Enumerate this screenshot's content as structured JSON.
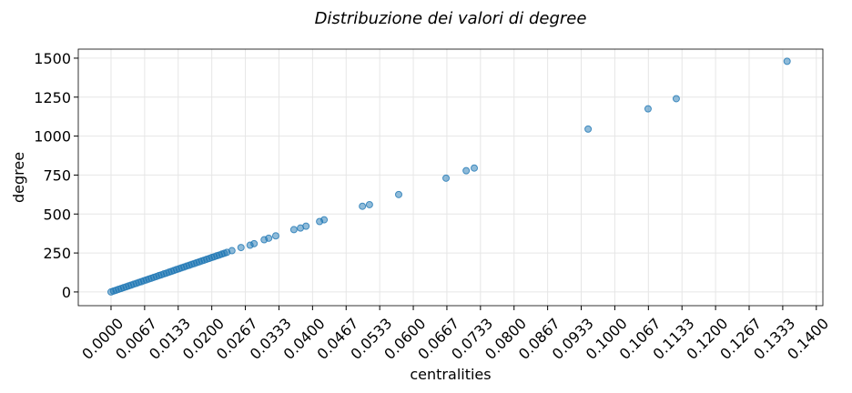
{
  "chart_data": {
    "type": "scatter",
    "title": "Distribuzione dei valori di degree",
    "x_label": "centralities",
    "y_label": "degree",
    "series": [
      {
        "color": "#1f77b4",
        "x": [
          0.0,
          0.0005,
          0.001,
          0.0015,
          0.002,
          0.0025,
          0.003,
          0.0035,
          0.004,
          0.0045,
          0.005,
          0.0055,
          0.006,
          0.0065,
          0.007,
          0.0075,
          0.008,
          0.0085,
          0.009,
          0.0095,
          0.01,
          0.0105,
          0.011,
          0.0115,
          0.012,
          0.0125,
          0.013,
          0.0135,
          0.014,
          0.0145,
          0.015,
          0.0155,
          0.016,
          0.0165,
          0.017,
          0.0175,
          0.018,
          0.0185,
          0.019,
          0.0195,
          0.02,
          0.0205,
          0.021,
          0.0215,
          0.022,
          0.0225,
          0.023,
          0.024,
          0.0258,
          0.0276,
          0.0284,
          0.0304,
          0.0313,
          0.0327,
          0.0363,
          0.0376,
          0.0387,
          0.0414,
          0.0423,
          0.0499,
          0.0513,
          0.0571,
          0.0665,
          0.0705,
          0.0721,
          0.0947,
          0.1066,
          0.1122,
          0.1342
        ],
        "values": [
          0,
          6,
          11,
          17,
          22,
          28,
          33,
          39,
          44,
          50,
          55,
          61,
          66,
          72,
          77,
          83,
          88,
          94,
          99,
          105,
          110,
          116,
          121,
          127,
          132,
          138,
          144,
          149,
          155,
          160,
          166,
          171,
          177,
          182,
          188,
          193,
          199,
          204,
          210,
          215,
          221,
          226,
          232,
          237,
          243,
          248,
          254,
          265,
          285,
          300,
          310,
          335,
          345,
          360,
          400,
          410,
          422,
          452,
          463,
          550,
          560,
          625,
          730,
          778,
          795,
          1045,
          1175,
          1240,
          1480
        ]
      }
    ],
    "xlim": [
      -0.0065,
      0.1413
    ],
    "ylim": [
      -88,
      1558
    ],
    "xticks": [
      {
        "value": 0,
        "label": "0.0000"
      },
      {
        "value": 0.006667,
        "label": "0.0067"
      },
      {
        "value": 0.013333,
        "label": "0.0133"
      },
      {
        "value": 0.02,
        "label": "0.0200"
      },
      {
        "value": 0.026667,
        "label": "0.0267"
      },
      {
        "value": 0.033333,
        "label": "0.0333"
      },
      {
        "value": 0.04,
        "label": "0.0400"
      },
      {
        "value": 0.046667,
        "label": "0.0467"
      },
      {
        "value": 0.053333,
        "label": "0.0533"
      },
      {
        "value": 0.06,
        "label": "0.0600"
      },
      {
        "value": 0.066667,
        "label": "0.0667"
      },
      {
        "value": 0.073333,
        "label": "0.0733"
      },
      {
        "value": 0.08,
        "label": "0.0800"
      },
      {
        "value": 0.086667,
        "label": "0.0867"
      },
      {
        "value": 0.093333,
        "label": "0.0933"
      },
      {
        "value": 0.1,
        "label": "0.1000"
      },
      {
        "value": 0.106667,
        "label": "0.1067"
      },
      {
        "value": 0.113333,
        "label": "0.1133"
      },
      {
        "value": 0.12,
        "label": "0.1200"
      },
      {
        "value": 0.126667,
        "label": "0.1267"
      },
      {
        "value": 0.133333,
        "label": "0.1333"
      },
      {
        "value": 0.14,
        "label": "0.1400"
      }
    ],
    "yticks": [
      0,
      250,
      500,
      750,
      1000,
      1250,
      1500
    ],
    "grid": true
  }
}
